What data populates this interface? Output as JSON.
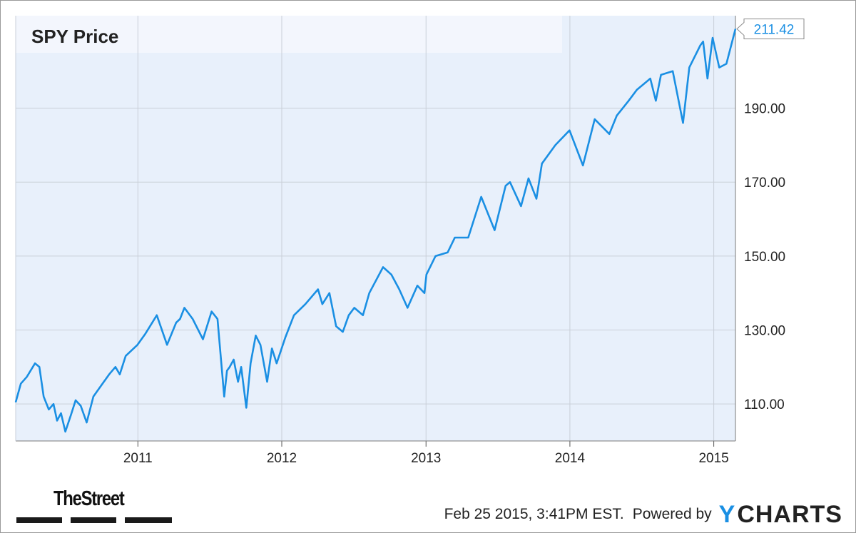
{
  "chart_data": {
    "type": "line",
    "title": "SPY Price",
    "x_ticks": [
      "2011",
      "2012",
      "2013",
      "2014",
      "2015"
    ],
    "y_ticks": [
      "110.00",
      "130.00",
      "150.00",
      "170.00",
      "190.00"
    ],
    "ylim": [
      100,
      215
    ],
    "xlim": [
      "2010-02-25",
      "2015-02-25"
    ],
    "grid": true,
    "last_value_label": "211.42",
    "line_color": "#1a8fe3",
    "plot_background": "#e8f0fb",
    "series": [
      {
        "x": [
          "2010-02-25",
          "2010-03-10",
          "2010-03-25",
          "2010-04-15",
          "2010-04-26",
          "2010-05-07",
          "2010-05-20",
          "2010-06-01",
          "2010-06-10",
          "2010-06-20",
          "2010-07-01",
          "2010-07-15",
          "2010-07-27",
          "2010-08-09",
          "2010-08-24",
          "2010-09-10",
          "2010-09-30",
          "2010-10-20",
          "2010-11-05",
          "2010-11-16",
          "2010-12-01",
          "2010-12-31",
          "2011-01-20",
          "2011-02-18",
          "2011-03-16",
          "2011-04-08",
          "2011-04-18",
          "2011-04-29",
          "2011-05-20",
          "2011-06-15",
          "2011-07-07",
          "2011-07-22",
          "2011-08-08",
          "2011-08-15",
          "2011-08-22",
          "2011-09-01",
          "2011-09-12",
          "2011-09-20",
          "2011-10-03",
          "2011-10-14",
          "2011-10-27",
          "2011-11-08",
          "2011-11-25",
          "2011-12-07",
          "2011-12-19",
          "2012-01-10",
          "2012-02-01",
          "2012-03-01",
          "2012-04-02",
          "2012-04-13",
          "2012-05-01",
          "2012-05-18",
          "2012-06-04",
          "2012-06-19",
          "2012-07-03",
          "2012-07-25",
          "2012-08-10",
          "2012-09-14",
          "2012-10-05",
          "2012-10-25",
          "2012-11-15",
          "2012-12-10",
          "2012-12-28",
          "2013-01-02",
          "2013-01-25",
          "2013-02-25",
          "2013-03-15",
          "2013-04-18",
          "2013-05-21",
          "2013-06-24",
          "2013-07-22",
          "2013-08-02",
          "2013-08-30",
          "2013-09-18",
          "2013-10-08",
          "2013-10-22",
          "2013-11-25",
          "2013-12-31",
          "2014-02-03",
          "2014-03-05",
          "2014-04-11",
          "2014-04-30",
          "2014-05-30",
          "2014-06-20",
          "2014-07-24",
          "2014-08-07",
          "2014-08-20",
          "2014-09-19",
          "2014-10-15",
          "2014-10-31",
          "2014-11-28",
          "2014-12-05",
          "2014-12-16",
          "2014-12-29",
          "2015-01-15",
          "2015-02-02",
          "2015-02-25"
        ],
        "values": [
          110.5,
          115.5,
          117.3,
          121.0,
          120.0,
          112.0,
          108.5,
          110.0,
          105.5,
          107.5,
          102.5,
          107.0,
          111.0,
          109.5,
          105.0,
          112.0,
          115.0,
          118.0,
          120.0,
          118.0,
          123.0,
          126.0,
          129.0,
          134.0,
          126.0,
          132.0,
          133.0,
          136.0,
          133.0,
          127.5,
          135.0,
          133.0,
          112.0,
          119.0,
          120.0,
          122.0,
          116.0,
          120.0,
          109.0,
          121.0,
          128.5,
          126.0,
          116.0,
          125.0,
          121.0,
          128.0,
          134.0,
          137.0,
          141.0,
          137.0,
          140.0,
          131.0,
          129.5,
          134.0,
          136.0,
          134.0,
          140.0,
          147.0,
          145.0,
          141.0,
          136.0,
          142.0,
          140.0,
          145.0,
          150.0,
          151.0,
          155.0,
          155.0,
          166.0,
          157.0,
          169.0,
          170.0,
          163.5,
          171.0,
          165.5,
          175.0,
          180.0,
          184.0,
          174.5,
          187.0,
          183.0,
          188.0,
          192.0,
          195.0,
          198.0,
          192.0,
          199.0,
          200.0,
          186.0,
          201.0,
          207.0,
          208.0,
          198.0,
          209.0,
          201.0,
          202.0,
          211.42
        ]
      }
    ]
  },
  "footer": {
    "timestamp": "Feb 25 2015, 3:41PM EST.",
    "powered_by": "Powered by",
    "brand_letter": "Y",
    "brand_rest": "CHARTS"
  },
  "logo": {
    "text": "TheStreet"
  }
}
